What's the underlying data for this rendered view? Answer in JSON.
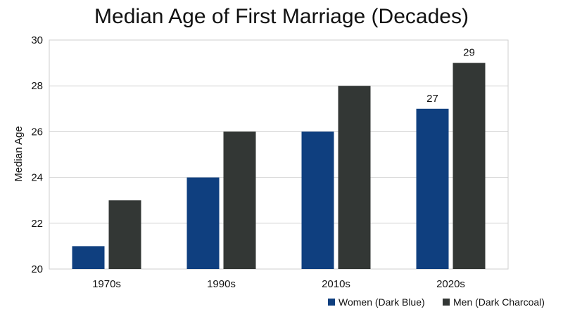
{
  "chart_data": {
    "type": "bar",
    "title": "Median Age of First Marriage (Decades)",
    "xlabel": "",
    "ylabel": "Median Age",
    "categories": [
      "1970s",
      "1990s",
      "2010s",
      "2020s"
    ],
    "series": [
      {
        "name": "Women (Dark Blue)",
        "values": [
          21,
          24,
          26,
          27
        ],
        "color": "#0f3f7f"
      },
      {
        "name": "Men (Dark Charcoal)",
        "values": [
          23,
          26,
          28,
          29
        ],
        "color": "#333735"
      }
    ],
    "data_labels": [
      {
        "series": 0,
        "index": 3,
        "text": "27"
      },
      {
        "series": 1,
        "index": 3,
        "text": "29"
      }
    ],
    "ylim": [
      20,
      30
    ],
    "yticks": [
      20,
      22,
      24,
      26,
      28,
      30
    ],
    "grid": true,
    "legend_position": "bottom-right"
  }
}
